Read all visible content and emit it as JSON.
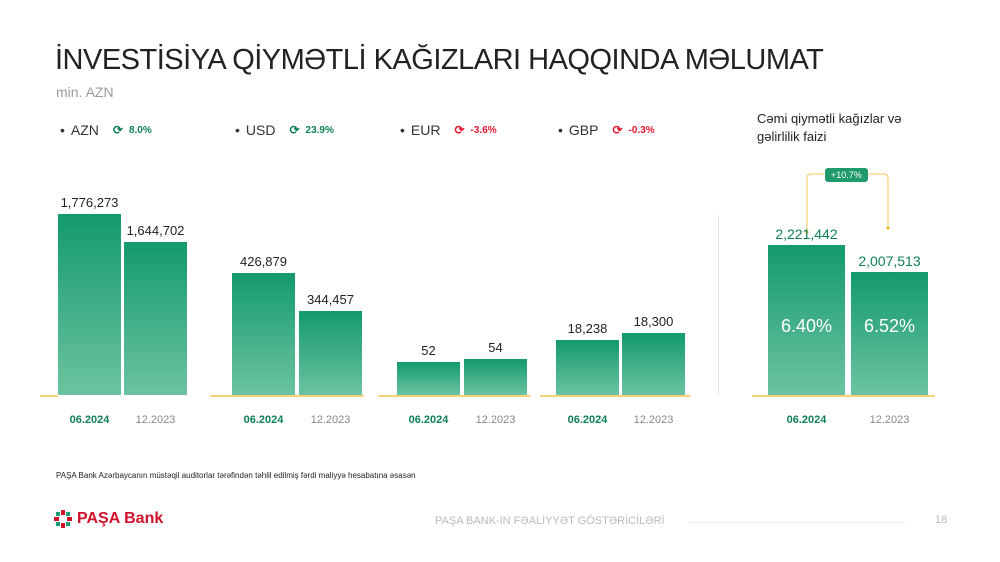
{
  "title": "İNVESTİSİYA QİYMƏTLİ KAĞIZLARI HAQQINDA MƏLUMAT",
  "unit": "min. AZN",
  "totals_title": "Cəmi qiymətli kağızlar və gəlirlilik faizi",
  "totals_change": "+10.7%",
  "colors": {
    "accent": "#139a6c",
    "positive": "#0e7f55",
    "negative": "#e3172f",
    "baseline": "#f3d27a"
  },
  "chart_data": {
    "type": "bar",
    "categories": [
      "06.2024",
      "12.2023"
    ],
    "groups": [
      {
        "name": "AZN",
        "change": "8.0%",
        "change_dir": "up",
        "values": [
          1776273,
          1644702
        ],
        "labels": [
          "1,776,273",
          "1,644,702"
        ]
      },
      {
        "name": "USD",
        "change": "23.9%",
        "change_dir": "up",
        "values": [
          426879,
          344457
        ],
        "labels": [
          "426,879",
          "344,457"
        ]
      },
      {
        "name": "EUR",
        "change": "-3.6%",
        "change_dir": "down",
        "values": [
          52,
          54
        ],
        "labels": [
          "52",
          "54"
        ]
      },
      {
        "name": "GBP",
        "change": "-0.3%",
        "change_dir": "down",
        "values": [
          18238,
          18300
        ],
        "labels": [
          "18,238",
          "18,300"
        ]
      },
      {
        "name": "Total",
        "values": [
          2221442,
          2007513
        ],
        "labels": [
          "2,221,442",
          "2,007,513"
        ],
        "yields": [
          "6.40%",
          "6.52%"
        ]
      }
    ]
  },
  "footnote": "PAŞA Bank Azərbaycanın müstəqil auditorlar tərəfindən təhlil edilmiş fərdi maliyyə hesabatına əsasən",
  "logo": "PAŞA Bank",
  "footer": "PAŞA BANK-IN FƏALİYYƏT GÖSTƏRİCİLƏRİ",
  "page_number": "18"
}
